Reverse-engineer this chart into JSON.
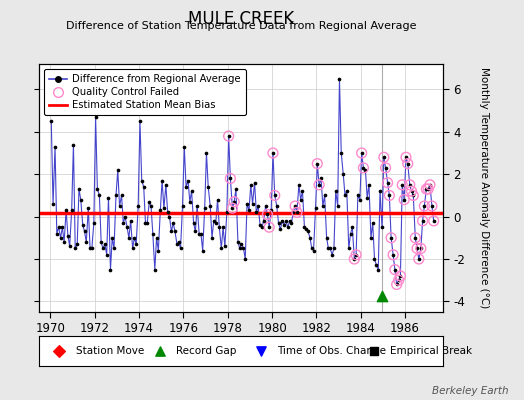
{
  "title": "MULE CREEK",
  "subtitle": "Difference of Station Temperature Data from Regional Average",
  "ylabel": "Monthly Temperature Anomaly Difference (°C)",
  "xlabel_years": [
    1970,
    1972,
    1974,
    1976,
    1978,
    1980,
    1982,
    1984,
    1986
  ],
  "xlim": [
    1969.5,
    1987.7
  ],
  "ylim": [
    -4.5,
    7.2
  ],
  "yticks": [
    -4,
    -2,
    0,
    2,
    4,
    6
  ],
  "bias_line_y": 0.18,
  "bias_seg1_xend": 1984.95,
  "bias_seg2_xstart": 1984.95,
  "record_gap_x": 1984.96,
  "record_gap_y": -3.75,
  "vertical_line_x": 1984.95,
  "background_color": "#e8e8e8",
  "plot_bg_color": "#ffffff",
  "line_color": "#4444cc",
  "dot_color": "#000000",
  "qc_fail_color": "#ff88cc",
  "bias_color": "#ff0000",
  "watermark": "Berkeley Earth",
  "data_x": [
    1970.04,
    1970.12,
    1970.21,
    1970.29,
    1970.37,
    1970.46,
    1970.54,
    1970.62,
    1970.71,
    1970.79,
    1970.87,
    1970.96,
    1971.04,
    1971.12,
    1971.21,
    1971.29,
    1971.37,
    1971.46,
    1971.54,
    1971.62,
    1971.71,
    1971.79,
    1971.87,
    1971.96,
    1972.04,
    1972.12,
    1972.21,
    1972.29,
    1972.37,
    1972.46,
    1972.54,
    1972.62,
    1972.71,
    1972.79,
    1972.87,
    1972.96,
    1973.04,
    1973.12,
    1973.21,
    1973.29,
    1973.37,
    1973.46,
    1973.54,
    1973.62,
    1973.71,
    1973.79,
    1973.87,
    1973.96,
    1974.04,
    1974.12,
    1974.21,
    1974.29,
    1974.37,
    1974.46,
    1974.54,
    1974.62,
    1974.71,
    1974.79,
    1974.87,
    1974.96,
    1975.04,
    1975.12,
    1975.21,
    1975.29,
    1975.37,
    1975.46,
    1975.54,
    1975.62,
    1975.71,
    1975.79,
    1975.87,
    1975.96,
    1976.04,
    1976.12,
    1976.21,
    1976.29,
    1976.37,
    1976.46,
    1976.54,
    1976.62,
    1976.71,
    1976.79,
    1976.87,
    1976.96,
    1977.04,
    1977.12,
    1977.21,
    1977.29,
    1977.37,
    1977.46,
    1977.54,
    1977.62,
    1977.71,
    1977.79,
    1977.87,
    1977.96,
    1978.04,
    1978.12,
    1978.21,
    1978.29,
    1978.37,
    1978.46,
    1978.54,
    1978.62,
    1978.71,
    1978.79,
    1978.87,
    1978.96,
    1979.04,
    1979.12,
    1979.21,
    1979.29,
    1979.37,
    1979.46,
    1979.54,
    1979.62,
    1979.71,
    1979.79,
    1979.87,
    1979.96,
    1980.04,
    1980.12,
    1980.21,
    1980.29,
    1980.37,
    1980.46,
    1980.54,
    1980.62,
    1980.71,
    1980.79,
    1980.87,
    1980.96,
    1981.04,
    1981.12,
    1981.21,
    1981.29,
    1981.37,
    1981.46,
    1981.54,
    1981.62,
    1981.71,
    1981.79,
    1981.87,
    1981.96,
    1982.04,
    1982.12,
    1982.21,
    1982.29,
    1982.37,
    1982.46,
    1982.54,
    1982.62,
    1982.71,
    1982.79,
    1982.87,
    1982.96,
    1983.04,
    1983.12,
    1983.21,
    1983.29,
    1983.37,
    1983.46,
    1983.54,
    1983.62,
    1983.71,
    1983.79,
    1983.87,
    1983.96,
    1984.04,
    1984.12,
    1984.21,
    1984.29,
    1984.37,
    1984.46,
    1984.54,
    1984.62,
    1984.71,
    1984.79,
    1984.87,
    1984.96,
    1985.04,
    1985.12,
    1985.21,
    1985.29,
    1985.37,
    1985.46,
    1985.54,
    1985.62,
    1985.71,
    1985.79,
    1985.87,
    1985.96,
    1986.04,
    1986.12,
    1986.21,
    1986.29,
    1986.37,
    1986.46,
    1986.54,
    1986.62,
    1986.71,
    1986.79,
    1986.87,
    1986.96,
    1987.04,
    1987.12,
    1987.21,
    1987.29
  ],
  "data_y": [
    4.5,
    0.6,
    3.3,
    -0.8,
    -0.5,
    -1.0,
    -0.5,
    -1.2,
    0.3,
    -0.9,
    -1.4,
    0.3,
    3.4,
    -1.5,
    -1.3,
    1.3,
    0.8,
    -0.4,
    -0.7,
    -1.2,
    0.4,
    -1.5,
    -1.5,
    -0.3,
    4.7,
    1.3,
    1.0,
    -1.2,
    -1.5,
    -1.3,
    -1.8,
    0.9,
    -2.5,
    -1.0,
    -1.5,
    1.0,
    2.2,
    0.5,
    1.0,
    -0.3,
    0.0,
    -0.5,
    -1.0,
    -0.2,
    -1.5,
    -1.0,
    -1.3,
    0.5,
    4.5,
    1.7,
    1.4,
    -0.3,
    -0.3,
    0.7,
    0.5,
    -0.8,
    -2.5,
    -1.0,
    -1.6,
    0.3,
    1.7,
    0.4,
    1.5,
    0.2,
    0.0,
    -0.7,
    -0.3,
    -0.7,
    -1.3,
    -1.2,
    -1.5,
    0.5,
    3.3,
    1.4,
    1.7,
    0.7,
    1.2,
    -0.3,
    -0.7,
    0.5,
    -0.8,
    -0.8,
    -1.6,
    0.4,
    3.0,
    1.4,
    0.5,
    -1.0,
    -0.2,
    -0.3,
    0.8,
    -0.5,
    -1.5,
    -0.5,
    -1.4,
    0.2,
    3.8,
    1.8,
    0.4,
    0.7,
    1.3,
    -1.2,
    -1.5,
    -1.3,
    -1.5,
    -2.0,
    0.6,
    0.3,
    1.5,
    0.6,
    1.6,
    0.2,
    0.5,
    -0.4,
    -0.5,
    -0.2,
    0.5,
    0.1,
    -0.5,
    0.3,
    3.0,
    1.0,
    0.5,
    -0.3,
    -0.6,
    -0.2,
    -0.4,
    -0.2,
    -0.5,
    -0.2,
    -0.3,
    0.2,
    0.5,
    0.2,
    1.5,
    0.8,
    1.2,
    -0.5,
    -0.6,
    -0.7,
    -1.0,
    -1.5,
    -1.6,
    0.4,
    2.5,
    1.5,
    1.8,
    0.5,
    1.0,
    -1.0,
    -1.5,
    -1.5,
    -1.8,
    -1.5,
    1.2,
    0.5,
    6.5,
    3.0,
    2.0,
    1.0,
    1.2,
    -1.5,
    -0.8,
    -0.5,
    -2.0,
    -1.8,
    1.0,
    0.8,
    3.0,
    2.3,
    2.2,
    0.9,
    1.5,
    -1.0,
    -0.3,
    -2.0,
    -2.3,
    -2.5,
    1.2,
    -0.5,
    2.8,
    2.3,
    1.6,
    1.0,
    -1.0,
    -1.8,
    -2.5,
    -3.2,
    -3.0,
    -2.8,
    1.5,
    0.8,
    2.8,
    2.5,
    1.5,
    1.2,
    1.0,
    -1.0,
    -1.5,
    -2.0,
    -1.5,
    -0.2,
    0.5,
    1.3,
    1.3,
    1.5,
    0.5,
    -0.2
  ],
  "qc_fail_x": [
    1978.04,
    1978.12,
    1978.21,
    1978.29,
    1979.79,
    1979.87,
    1980.04,
    1980.12,
    1981.04,
    1981.12,
    1982.04,
    1982.12,
    1983.71,
    1983.79,
    1984.04,
    1984.12,
    1985.04,
    1985.12,
    1985.21,
    1985.29,
    1985.37,
    1985.46,
    1985.54,
    1985.62,
    1985.71,
    1985.79,
    1985.87,
    1985.96,
    1986.04,
    1986.12,
    1986.21,
    1986.29,
    1986.37,
    1986.46,
    1986.54,
    1986.62,
    1986.71,
    1986.79,
    1986.87,
    1986.96,
    1987.04,
    1987.12,
    1987.21,
    1987.29
  ],
  "qc_fail_y": [
    3.8,
    1.8,
    0.4,
    0.7,
    0.1,
    -0.5,
    3.0,
    1.0,
    0.5,
    0.2,
    2.5,
    1.5,
    -2.0,
    -1.8,
    3.0,
    2.3,
    2.8,
    2.3,
    1.6,
    1.0,
    -1.0,
    -1.8,
    -2.5,
    -3.2,
    -3.0,
    -2.8,
    1.5,
    0.8,
    2.8,
    2.5,
    1.5,
    1.2,
    1.0,
    -1.0,
    -1.5,
    -2.0,
    -1.5,
    -0.2,
    0.5,
    1.3,
    1.3,
    1.5,
    0.5,
    -0.2
  ]
}
